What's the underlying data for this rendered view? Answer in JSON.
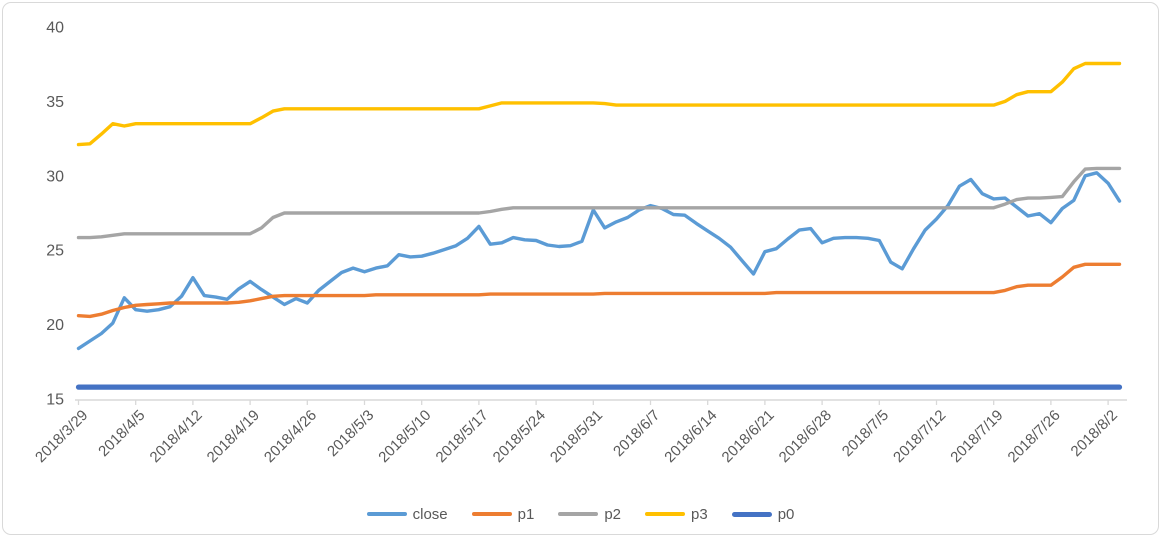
{
  "chart_data": {
    "type": "line",
    "title": "",
    "xlabel": "",
    "ylabel": "",
    "ylim": [
      15,
      40
    ],
    "y_ticks": [
      40,
      35,
      30,
      25,
      20,
      15
    ],
    "x_tick_labels": [
      "2018/3/29",
      "2018/4/5",
      "2018/4/12",
      "2018/4/19",
      "2018/4/26",
      "2018/5/3",
      "2018/5/10",
      "2018/5/17",
      "2018/5/24",
      "2018/5/31",
      "2018/6/7",
      "2018/6/14",
      "2018/6/21",
      "2018/6/28",
      "2018/7/5",
      "2018/7/12",
      "2018/7/19",
      "2018/7/26",
      "2018/8/2"
    ],
    "x_tick_every": 5,
    "grid": false,
    "legend_position": "bottom",
    "x": [
      "2018/3/29",
      "2018/3/30",
      "2018/4/2",
      "2018/4/3",
      "2018/4/4",
      "2018/4/5",
      "2018/4/6",
      "2018/4/9",
      "2018/4/10",
      "2018/4/11",
      "2018/4/12",
      "2018/4/13",
      "2018/4/16",
      "2018/4/17",
      "2018/4/18",
      "2018/4/19",
      "2018/4/20",
      "2018/4/23",
      "2018/4/24",
      "2018/4/25",
      "2018/4/26",
      "2018/4/27",
      "2018/4/30",
      "2018/5/1",
      "2018/5/2",
      "2018/5/3",
      "2018/5/4",
      "2018/5/7",
      "2018/5/8",
      "2018/5/9",
      "2018/5/10",
      "2018/5/11",
      "2018/5/14",
      "2018/5/15",
      "2018/5/16",
      "2018/5/17",
      "2018/5/18",
      "2018/5/21",
      "2018/5/22",
      "2018/5/23",
      "2018/5/24",
      "2018/5/25",
      "2018/5/28",
      "2018/5/29",
      "2018/5/30",
      "2018/5/31",
      "2018/6/1",
      "2018/6/4",
      "2018/6/5",
      "2018/6/6",
      "2018/6/7",
      "2018/6/8",
      "2018/6/11",
      "2018/6/12",
      "2018/6/13",
      "2018/6/14",
      "2018/6/15",
      "2018/6/18",
      "2018/6/19",
      "2018/6/20",
      "2018/6/21",
      "2018/6/22",
      "2018/6/25",
      "2018/6/26",
      "2018/6/27",
      "2018/6/28",
      "2018/6/29",
      "2018/7/2",
      "2018/7/3",
      "2018/7/4",
      "2018/7/5",
      "2018/7/6",
      "2018/7/9",
      "2018/7/10",
      "2018/7/11",
      "2018/7/12",
      "2018/7/13",
      "2018/7/16",
      "2018/7/17",
      "2018/7/18",
      "2018/7/19",
      "2018/7/20",
      "2018/7/23",
      "2018/7/24",
      "2018/7/25",
      "2018/7/26",
      "2018/7/27",
      "2018/7/30",
      "2018/7/31",
      "2018/8/1",
      "2018/8/2",
      "2018/8/3"
    ],
    "series": [
      {
        "name": "close",
        "color": "#5B9BD5",
        "emphasis": false,
        "values": [
          18.4,
          18.9,
          19.4,
          20.1,
          21.8,
          21.0,
          20.9,
          21.0,
          21.2,
          21.9,
          23.15,
          21.95,
          21.85,
          21.7,
          22.4,
          22.9,
          22.35,
          21.85,
          21.35,
          21.75,
          21.45,
          22.3,
          22.9,
          23.5,
          23.8,
          23.55,
          23.8,
          23.95,
          24.7,
          24.55,
          24.6,
          24.8,
          25.05,
          25.3,
          25.8,
          26.6,
          25.4,
          25.5,
          25.85,
          25.7,
          25.65,
          25.35,
          25.25,
          25.3,
          25.6,
          27.7,
          26.5,
          26.9,
          27.2,
          27.7,
          28.0,
          27.8,
          27.4,
          27.35,
          26.8,
          26.3,
          25.8,
          25.2,
          24.3,
          23.4,
          24.9,
          25.1,
          25.75,
          26.35,
          26.45,
          25.5,
          25.8,
          25.85,
          25.85,
          25.8,
          25.65,
          24.2,
          23.75,
          25.1,
          26.35,
          27.1,
          28.0,
          29.3,
          29.75,
          28.8,
          28.45,
          28.5,
          27.9,
          27.3,
          27.45,
          26.85,
          27.8,
          28.35,
          30.0,
          30.2,
          29.5,
          28.3
        ]
      },
      {
        "name": "p1",
        "color": "#ED7D31",
        "emphasis": false,
        "values": [
          20.6,
          20.55,
          20.7,
          20.95,
          21.15,
          21.3,
          21.35,
          21.4,
          21.45,
          21.45,
          21.45,
          21.45,
          21.45,
          21.45,
          21.5,
          21.6,
          21.75,
          21.9,
          21.95,
          21.95,
          21.95,
          21.95,
          21.95,
          21.95,
          21.95,
          21.95,
          22.0,
          22.0,
          22.0,
          22.0,
          22.0,
          22.0,
          22.0,
          22.0,
          22.0,
          22.0,
          22.05,
          22.05,
          22.05,
          22.05,
          22.05,
          22.05,
          22.05,
          22.05,
          22.05,
          22.05,
          22.1,
          22.1,
          22.1,
          22.1,
          22.1,
          22.1,
          22.1,
          22.1,
          22.1,
          22.1,
          22.1,
          22.1,
          22.1,
          22.1,
          22.1,
          22.15,
          22.15,
          22.15,
          22.15,
          22.15,
          22.15,
          22.15,
          22.15,
          22.15,
          22.15,
          22.15,
          22.15,
          22.15,
          22.15,
          22.15,
          22.15,
          22.15,
          22.15,
          22.15,
          22.15,
          22.3,
          22.55,
          22.65,
          22.65,
          22.65,
          23.2,
          23.85,
          24.05,
          24.05,
          24.05,
          24.05
        ]
      },
      {
        "name": "p2",
        "color": "#A5A5A5",
        "emphasis": false,
        "values": [
          25.85,
          25.85,
          25.9,
          26.0,
          26.1,
          26.1,
          26.1,
          26.1,
          26.1,
          26.1,
          26.1,
          26.1,
          26.1,
          26.1,
          26.1,
          26.1,
          26.5,
          27.2,
          27.5,
          27.5,
          27.5,
          27.5,
          27.5,
          27.5,
          27.5,
          27.5,
          27.5,
          27.5,
          27.5,
          27.5,
          27.5,
          27.5,
          27.5,
          27.5,
          27.5,
          27.5,
          27.6,
          27.75,
          27.85,
          27.85,
          27.85,
          27.85,
          27.85,
          27.85,
          27.85,
          27.85,
          27.85,
          27.85,
          27.85,
          27.85,
          27.85,
          27.85,
          27.85,
          27.85,
          27.85,
          27.85,
          27.85,
          27.85,
          27.85,
          27.85,
          27.85,
          27.85,
          27.85,
          27.85,
          27.85,
          27.85,
          27.85,
          27.85,
          27.85,
          27.85,
          27.85,
          27.85,
          27.85,
          27.85,
          27.85,
          27.85,
          27.85,
          27.85,
          27.85,
          27.85,
          27.85,
          28.1,
          28.4,
          28.5,
          28.5,
          28.55,
          28.6,
          29.6,
          30.45,
          30.5,
          30.5,
          30.5
        ]
      },
      {
        "name": "p3",
        "color": "#FFC000",
        "emphasis": false,
        "values": [
          32.1,
          32.15,
          32.8,
          33.5,
          33.35,
          33.5,
          33.5,
          33.5,
          33.5,
          33.5,
          33.5,
          33.5,
          33.5,
          33.5,
          33.5,
          33.5,
          33.9,
          34.35,
          34.5,
          34.5,
          34.5,
          34.5,
          34.5,
          34.5,
          34.5,
          34.5,
          34.5,
          34.5,
          34.5,
          34.5,
          34.5,
          34.5,
          34.5,
          34.5,
          34.5,
          34.5,
          34.7,
          34.9,
          34.9,
          34.9,
          34.9,
          34.9,
          34.9,
          34.9,
          34.9,
          34.9,
          34.85,
          34.75,
          34.75,
          34.75,
          34.75,
          34.75,
          34.75,
          34.75,
          34.75,
          34.75,
          34.75,
          34.75,
          34.75,
          34.75,
          34.75,
          34.75,
          34.75,
          34.75,
          34.75,
          34.75,
          34.75,
          34.75,
          34.75,
          34.75,
          34.75,
          34.75,
          34.75,
          34.75,
          34.75,
          34.75,
          34.75,
          34.75,
          34.75,
          34.75,
          34.75,
          35.0,
          35.45,
          35.65,
          35.65,
          35.65,
          36.3,
          37.2,
          37.55,
          37.55,
          37.55,
          37.55
        ]
      },
      {
        "name": "p0",
        "color": "#4472C4",
        "emphasis": true,
        "values": null,
        "constant": 15.8
      }
    ]
  },
  "legend": {
    "items": [
      {
        "label": "close",
        "color": "#5B9BD5",
        "thick": false
      },
      {
        "label": "p1",
        "color": "#ED7D31",
        "thick": false
      },
      {
        "label": "p2",
        "color": "#A5A5A5",
        "thick": false
      },
      {
        "label": "p3",
        "color": "#FFC000",
        "thick": false
      },
      {
        "label": "p0",
        "color": "#4472C4",
        "thick": true
      }
    ]
  },
  "colors": {
    "axis": "#D9D9D9",
    "text": "#595959",
    "background": "#FFFFFF"
  }
}
